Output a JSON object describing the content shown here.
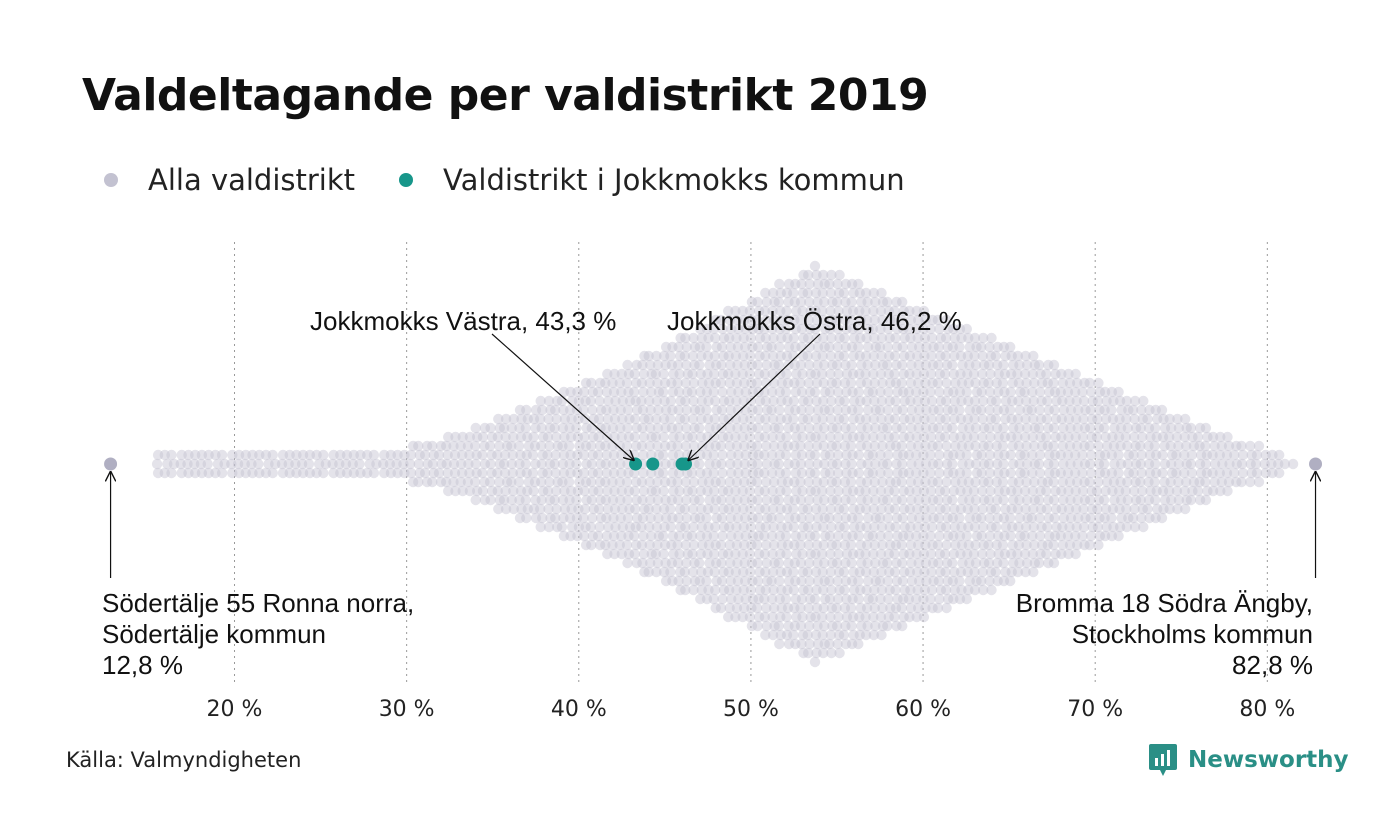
{
  "title": "Valdeltagande per valdistrikt 2019",
  "legend": [
    {
      "label": "Alla valdistrikt",
      "color": "#c3c2d1"
    },
    {
      "label": "Valdistrikt i Jokkmokks kommun",
      "color": "#17968a"
    }
  ],
  "source": "Källa: Valmyndigheten",
  "brand": {
    "name": "Newsworthy",
    "icon": "newsworthy-logo-icon",
    "color": "#2a8f86"
  },
  "chart_data": {
    "type": "scatter",
    "subtype": "beeswarm",
    "title": "Valdeltagande per valdistrikt 2019",
    "xlabel": "",
    "ylabel": "",
    "xlim": [
      8.7,
      85.5
    ],
    "x_ticks": [
      {
        "value": 20,
        "label": "20 %"
      },
      {
        "value": 30,
        "label": "30 %"
      },
      {
        "value": 40,
        "label": "40 %"
      },
      {
        "value": 50,
        "label": "50 %"
      },
      {
        "value": 60,
        "label": "60 %"
      },
      {
        "value": 70,
        "label": "70 %"
      },
      {
        "value": 80,
        "label": "80 %"
      }
    ],
    "grid": "vertical-dotted",
    "legend_position": "top-left",
    "background_distribution": {
      "description_note": "",
      "color": "#c3c2d1",
      "min": 12.8,
      "max": 82.8,
      "peak": 53.7
    },
    "highlighted_series": {
      "color": "#17968a",
      "values": [
        43.3,
        44.3,
        46.0,
        46.2
      ]
    },
    "annotations": [
      {
        "lines": [
          "Jokkmokks Västra, 43,3 %"
        ],
        "value": 43.3
      },
      {
        "lines": [
          "Jokkmokks Östra, 46,2 %"
        ],
        "value": 46.2
      },
      {
        "lines": [
          "Södertälje 55 Ronna norra,",
          "Södertälje kommun",
          "12,8 %"
        ],
        "value": 12.8
      },
      {
        "lines": [
          "Bromma 18 Södra Ängby,",
          "Stockholms kommun",
          "82,8 %"
        ],
        "value": 82.8
      }
    ]
  }
}
